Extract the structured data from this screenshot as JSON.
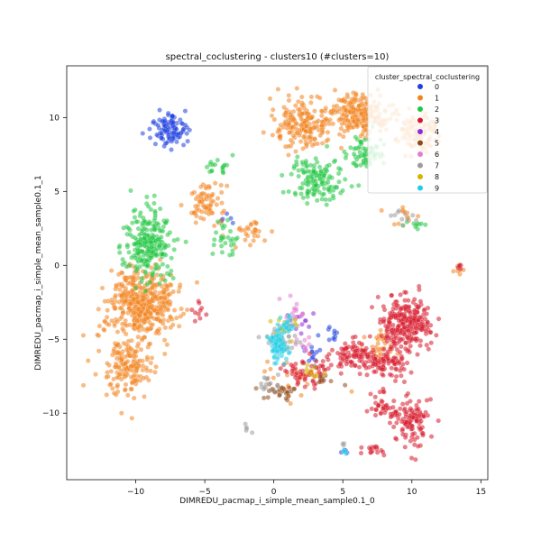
{
  "chart_data": {
    "type": "scatter",
    "title": "spectral_coclustering - clusters10 (#clusters=10)",
    "xlabel": "DIMREDU_pacmap_i_simple_mean_sample0.1_0",
    "ylabel": "DIMREDU_pacmap_i_simple_mean_sample0.1_1",
    "xlim": [
      -15,
      15.5
    ],
    "ylim": [
      -14.5,
      13.5
    ],
    "x_ticks": [
      -10,
      -5,
      0,
      5,
      10,
      15
    ],
    "x_tick_labels": [
      "−10",
      "−5",
      "0",
      "5",
      "10",
      "15"
    ],
    "y_ticks": [
      -10,
      -5,
      0,
      5,
      10
    ],
    "y_tick_labels": [
      "−10",
      "−5",
      "0",
      "5",
      "10"
    ],
    "legend": {
      "title": "cluster_spectral_coclustering",
      "placement": "top-right",
      "entries": [
        {
          "label": "0",
          "color": "#1f3fe0"
        },
        {
          "label": "1",
          "color": "#f2831f"
        },
        {
          "label": "2",
          "color": "#22c743"
        },
        {
          "label": "3",
          "color": "#d7182a"
        },
        {
          "label": "4",
          "color": "#8f2ad6"
        },
        {
          "label": "5",
          "color": "#8c4a1a"
        },
        {
          "label": "6",
          "color": "#e47dcf"
        },
        {
          "label": "7",
          "color": "#9c9c9c"
        },
        {
          "label": "8",
          "color": "#d7b300"
        },
        {
          "label": "9",
          "color": "#22cde6"
        }
      ]
    },
    "series": [
      {
        "name": "0",
        "regions": [
          {
            "center": [
              -7.6,
              9.1
            ],
            "spread": [
              1.25,
              1.15
            ],
            "count": 110
          },
          {
            "center": [
              -3.6,
              3.0
            ],
            "spread": [
              0.75,
              0.45
            ],
            "count": 6
          },
          {
            "center": [
              2.7,
              -6.0
            ],
            "spread": [
              1.0,
              0.65
            ],
            "count": 14
          },
          {
            "center": [
              4.1,
              -4.7
            ],
            "spread": [
              0.75,
              0.55
            ],
            "count": 10
          },
          {
            "center": [
              5.2,
              -12.5
            ],
            "spread": [
              0.3,
              0.2
            ],
            "count": 4
          }
        ]
      },
      {
        "name": "1",
        "regions": [
          {
            "center": [
              -9.5,
              -2.5
            ],
            "spread": [
              2.3,
              2.0
            ],
            "count": 420
          },
          {
            "center": [
              -10.6,
              -6.8
            ],
            "spread": [
              1.8,
              2.0
            ],
            "count": 170
          },
          {
            "center": [
              -4.7,
              4.3
            ],
            "spread": [
              1.2,
              1.4
            ],
            "count": 70
          },
          {
            "center": [
              2.2,
              9.6
            ],
            "spread": [
              1.7,
              1.5
            ],
            "count": 180
          },
          {
            "center": [
              6.3,
              10.3
            ],
            "spread": [
              2.0,
              1.3
            ],
            "count": 220
          },
          {
            "center": [
              10.6,
              9.0
            ],
            "spread": [
              1.3,
              1.1
            ],
            "count": 110
          },
          {
            "center": [
              -1.8,
              2.3
            ],
            "spread": [
              1.1,
              0.9
            ],
            "count": 28
          },
          {
            "center": [
              1.6,
              -7.7
            ],
            "spread": [
              2.2,
              1.1
            ],
            "count": 26
          },
          {
            "center": [
              7.7,
              -5.4
            ],
            "spread": [
              1.0,
              0.8
            ],
            "count": 28
          },
          {
            "center": [
              9.4,
              3.4
            ],
            "spread": [
              1.1,
              0.6
            ],
            "count": 12
          },
          {
            "center": [
              13.1,
              -0.4
            ],
            "spread": [
              0.65,
              0.25
            ],
            "count": 6
          }
        ]
      },
      {
        "name": "2",
        "regions": [
          {
            "center": [
              -9.0,
              1.4
            ],
            "spread": [
              1.6,
              2.3
            ],
            "count": 260
          },
          {
            "center": [
              3.0,
              5.7
            ],
            "spread": [
              1.9,
              1.5
            ],
            "count": 140
          },
          {
            "center": [
              6.7,
              7.6
            ],
            "spread": [
              1.3,
              1.1
            ],
            "count": 70
          },
          {
            "center": [
              -3.6,
              1.6
            ],
            "spread": [
              0.9,
              1.3
            ],
            "count": 28
          },
          {
            "center": [
              -4.2,
              6.7
            ],
            "spread": [
              1.0,
              0.8
            ],
            "count": 18
          },
          {
            "center": [
              10.3,
              2.8
            ],
            "spread": [
              1.0,
              0.3
            ],
            "count": 10
          }
        ]
      },
      {
        "name": "3",
        "regions": [
          {
            "center": [
              9.6,
              -3.9
            ],
            "spread": [
              1.7,
              1.5
            ],
            "count": 250
          },
          {
            "center": [
              8.1,
              -6.5
            ],
            "spread": [
              1.4,
              1.0
            ],
            "count": 90
          },
          {
            "center": [
              10.0,
              -10.6
            ],
            "spread": [
              1.1,
              1.4
            ],
            "count": 110
          },
          {
            "center": [
              5.7,
              -6.1
            ],
            "spread": [
              1.5,
              1.0
            ],
            "count": 90
          },
          {
            "center": [
              2.4,
              -7.2
            ],
            "spread": [
              1.5,
              0.9
            ],
            "count": 60
          },
          {
            "center": [
              7.8,
              -9.6
            ],
            "spread": [
              0.8,
              0.9
            ],
            "count": 35
          },
          {
            "center": [
              7.2,
              -12.4
            ],
            "spread": [
              0.8,
              0.4
            ],
            "count": 16
          },
          {
            "center": [
              -5.4,
              -3.1
            ],
            "spread": [
              0.6,
              0.7
            ],
            "count": 10
          },
          {
            "center": [
              13.4,
              0.0
            ],
            "spread": [
              0.45,
              0.25
            ],
            "count": 5
          }
        ]
      },
      {
        "name": "4",
        "regions": [
          {
            "center": [
              2.0,
              -3.9
            ],
            "spread": [
              1.1,
              0.8
            ],
            "count": 14
          }
        ]
      },
      {
        "name": "5",
        "regions": [
          {
            "center": [
              0.4,
              -8.5
            ],
            "spread": [
              0.9,
              0.45
            ],
            "count": 28
          },
          {
            "center": [
              3.6,
              -7.8
            ],
            "spread": [
              0.8,
              0.4
            ],
            "count": 10
          }
        ]
      },
      {
        "name": "6",
        "regions": [
          {
            "center": [
              1.6,
              -3.2
            ],
            "spread": [
              1.0,
              0.9
            ],
            "count": 16
          },
          {
            "center": [
              2.2,
              -5.6
            ],
            "spread": [
              0.8,
              0.6
            ],
            "count": 10
          }
        ]
      },
      {
        "name": "7",
        "regions": [
          {
            "center": [
              0.8,
              -4.8
            ],
            "spread": [
              1.3,
              1.0
            ],
            "count": 30
          },
          {
            "center": [
              -0.4,
              -7.9
            ],
            "spread": [
              0.8,
              0.8
            ],
            "count": 14
          },
          {
            "center": [
              -1.9,
              -11.2
            ],
            "spread": [
              0.25,
              0.35
            ],
            "count": 5
          },
          {
            "center": [
              9.5,
              3.2
            ],
            "spread": [
              1.2,
              0.5
            ],
            "count": 10
          },
          {
            "center": [
              5.1,
              -12.2
            ],
            "spread": [
              0.2,
              0.2
            ],
            "count": 3
          }
        ]
      },
      {
        "name": "8",
        "regions": [
          {
            "center": [
              0.6,
              -4.2
            ],
            "spread": [
              1.2,
              0.7
            ],
            "count": 18
          },
          {
            "center": [
              2.7,
              -7.1
            ],
            "spread": [
              0.8,
              0.5
            ],
            "count": 10
          }
        ]
      },
      {
        "name": "9",
        "regions": [
          {
            "center": [
              0.3,
              -5.4
            ],
            "spread": [
              0.55,
              0.9
            ],
            "count": 90
          },
          {
            "center": [
              1.0,
              -4.0
            ],
            "spread": [
              0.6,
              0.55
            ],
            "count": 20
          },
          {
            "center": [
              5.3,
              -12.6
            ],
            "spread": [
              0.25,
              0.2
            ],
            "count": 4
          }
        ]
      }
    ]
  }
}
